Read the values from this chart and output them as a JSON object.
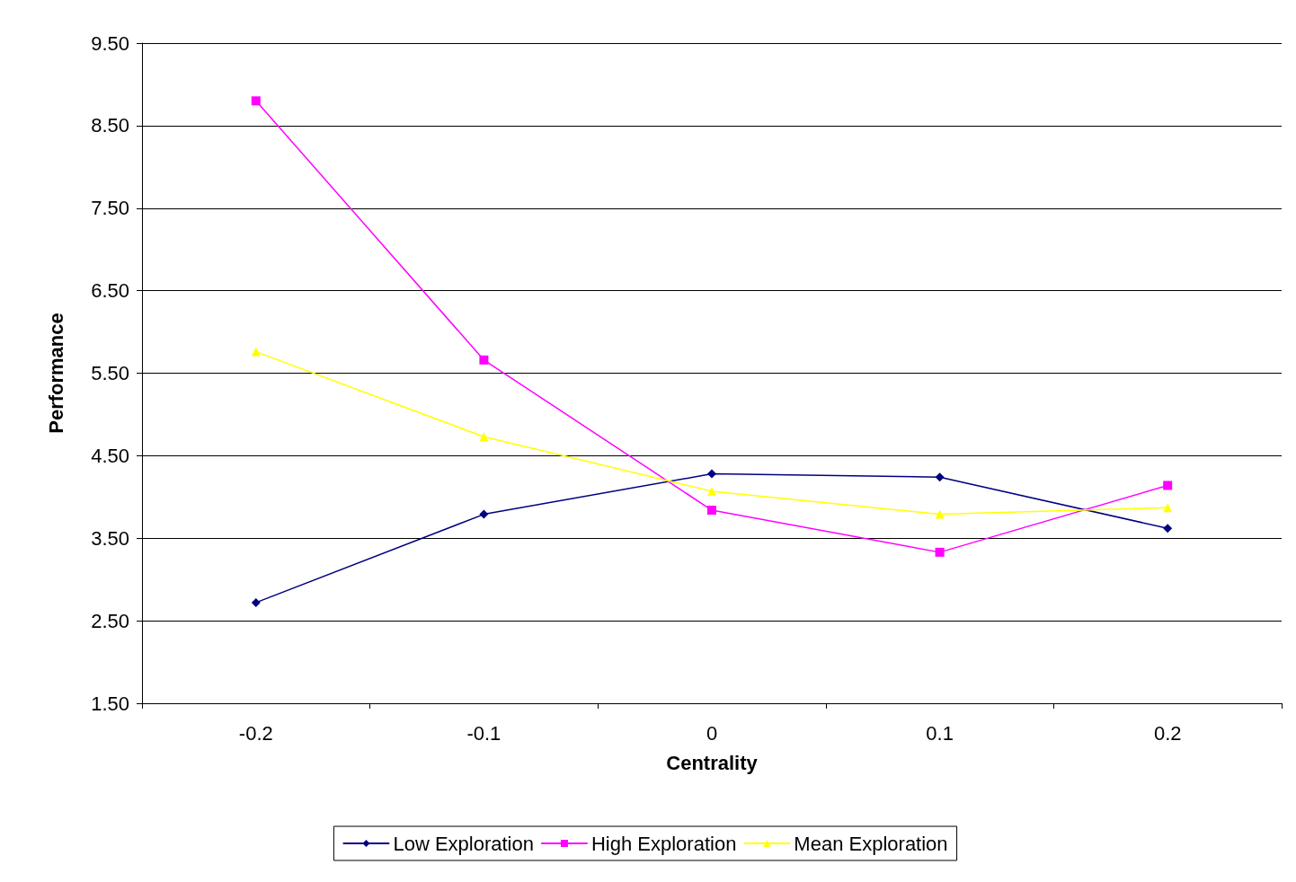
{
  "chart_data": {
    "type": "line",
    "xlabel": "Centrality",
    "ylabel": "Performance",
    "categories": [
      "-0.2",
      "-0.1",
      "0",
      "0.1",
      "0.2"
    ],
    "series": [
      {
        "name": "Low Exploration",
        "color": "#000080",
        "marker": "diamond",
        "values": [
          2.72,
          3.79,
          4.28,
          4.24,
          3.62
        ]
      },
      {
        "name": "High Exploration",
        "color": "#ff00ff",
        "marker": "square",
        "values": [
          8.8,
          5.66,
          3.84,
          3.33,
          4.14
        ]
      },
      {
        "name": "Mean Exploration",
        "color": "#ffff00",
        "marker": "triangle",
        "values": [
          5.76,
          4.73,
          4.07,
          3.79,
          3.87
        ]
      }
    ],
    "ylim": [
      1.5,
      9.5
    ],
    "yticks": [
      {
        "value": 1.5,
        "label": "1.50"
      },
      {
        "value": 2.5,
        "label": "2.50"
      },
      {
        "value": 3.5,
        "label": "3.50"
      },
      {
        "value": 4.5,
        "label": "4.50"
      },
      {
        "value": 5.5,
        "label": "5.50"
      },
      {
        "value": 6.5,
        "label": "6.50"
      },
      {
        "value": 7.5,
        "label": "7.50"
      },
      {
        "value": 8.5,
        "label": "8.50"
      },
      {
        "value": 9.5,
        "label": "9.50"
      }
    ],
    "grid": "y",
    "legend": "bottom",
    "line_style": "solid"
  }
}
